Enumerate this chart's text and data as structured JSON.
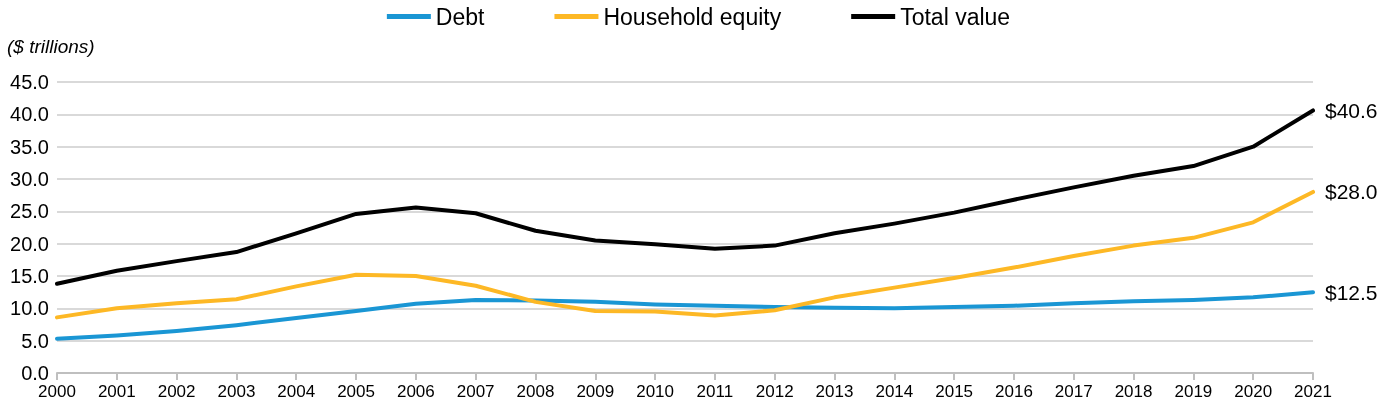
{
  "chart_data": {
    "type": "line",
    "ylabel": "($ trillions)",
    "categories": [
      "2000",
      "2001",
      "2002",
      "2003",
      "2004",
      "2005",
      "2006",
      "2007",
      "2008",
      "2009",
      "2010",
      "2011",
      "2012",
      "2013",
      "2014",
      "2015",
      "2016",
      "2017",
      "2018",
      "2019",
      "2020",
      "2021"
    ],
    "series": [
      {
        "name": "Debt",
        "color": "#1a96d4",
        "values": [
          5.3,
          5.8,
          6.5,
          7.4,
          8.5,
          9.6,
          10.7,
          11.3,
          11.2,
          11.0,
          10.6,
          10.4,
          10.2,
          10.1,
          10.0,
          10.2,
          10.4,
          10.8,
          11.1,
          11.3,
          11.7,
          12.5
        ],
        "value_labels": [
          null,
          null,
          null,
          null,
          null,
          null,
          null,
          null,
          null,
          null,
          null,
          null,
          null,
          null,
          null,
          null,
          null,
          null,
          null,
          null,
          null,
          "$12.5"
        ]
      },
      {
        "name": "Household equity",
        "color": "#fdb825",
        "values": [
          8.6,
          10.0,
          10.8,
          11.4,
          13.4,
          15.2,
          15.0,
          13.5,
          11.0,
          9.6,
          9.5,
          8.9,
          9.7,
          11.7,
          13.2,
          14.7,
          16.3,
          18.1,
          19.7,
          20.9,
          23.3,
          28.0
        ],
        "value_labels": [
          null,
          null,
          null,
          null,
          null,
          null,
          null,
          null,
          null,
          null,
          null,
          null,
          null,
          null,
          null,
          null,
          null,
          null,
          null,
          null,
          null,
          "$28.0"
        ]
      },
      {
        "name": "Total value",
        "color": "#000000",
        "values": [
          13.8,
          15.8,
          17.3,
          18.7,
          21.6,
          24.6,
          25.6,
          24.7,
          22.0,
          20.5,
          19.9,
          19.2,
          19.7,
          21.6,
          23.1,
          24.8,
          26.8,
          28.7,
          30.5,
          32.0,
          35.0,
          40.6
        ],
        "value_labels": [
          null,
          null,
          null,
          null,
          null,
          null,
          null,
          null,
          null,
          null,
          null,
          null,
          null,
          null,
          null,
          null,
          null,
          null,
          null,
          null,
          null,
          "$40.6"
        ]
      }
    ],
    "ylim": [
      0,
      45
    ],
    "yticks": [
      {
        "value": 0,
        "label": "0.0"
      },
      {
        "value": 5,
        "label": "5.0"
      },
      {
        "value": 10,
        "label": "10.0"
      },
      {
        "value": 15,
        "label": "15.0"
      },
      {
        "value": 20,
        "label": "20.0"
      },
      {
        "value": 25,
        "label": "25.0"
      },
      {
        "value": 30,
        "label": "30.0"
      },
      {
        "value": 35,
        "label": "35.0"
      },
      {
        "value": 40,
        "label": "40.0"
      },
      {
        "value": 45,
        "label": "45.0"
      }
    ],
    "grid": "y",
    "legend": "top",
    "marker": "none",
    "line_style": "solid"
  }
}
